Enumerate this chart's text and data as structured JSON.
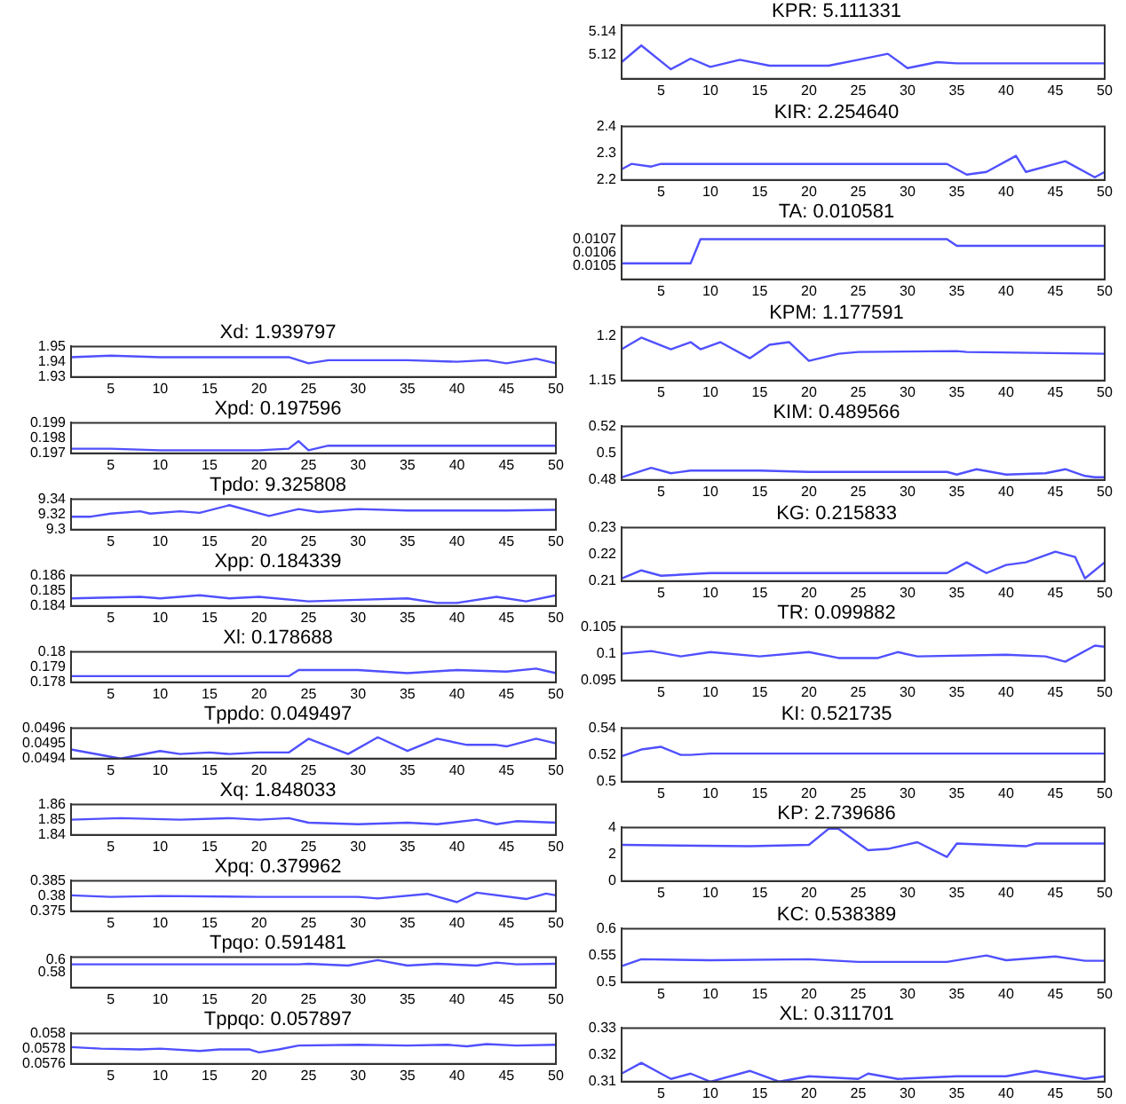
{
  "chart_data": [
    {
      "type": "line",
      "title": "Xd: 1.939797",
      "x": [
        1,
        5,
        10,
        15,
        20,
        23,
        25,
        27,
        30,
        35,
        40,
        43,
        45,
        47,
        48,
        50
      ],
      "values": [
        1.943,
        1.944,
        1.943,
        1.943,
        1.943,
        1.943,
        1.939,
        1.941,
        1.941,
        1.941,
        1.94,
        1.941,
        1.939,
        1.941,
        1.942,
        1.939
      ],
      "color": "#5050ff",
      "xlim": [
        1,
        50
      ],
      "xticks": [
        5,
        10,
        15,
        20,
        25,
        30,
        35,
        40,
        45,
        50
      ],
      "ylim": [
        1.93,
        1.95
      ],
      "yticks": [
        1.93,
        1.94,
        1.95
      ],
      "grid": false
    },
    {
      "type": "line",
      "title": "Xpd: 0.197596",
      "x": [
        1,
        5,
        10,
        15,
        20,
        23,
        24,
        25,
        27,
        30,
        35,
        40,
        45,
        50
      ],
      "values": [
        0.1973,
        0.1973,
        0.1972,
        0.1972,
        0.1972,
        0.1973,
        0.1978,
        0.1972,
        0.1975,
        0.1975,
        0.1975,
        0.1975,
        0.1975,
        0.1975
      ],
      "color": "#5050ff",
      "xlim": [
        1,
        50
      ],
      "xticks": [
        5,
        10,
        15,
        20,
        25,
        30,
        35,
        40,
        45,
        50
      ],
      "ylim": [
        0.197,
        0.199
      ],
      "yticks": [
        0.197,
        0.198,
        0.199
      ],
      "grid": false
    },
    {
      "type": "line",
      "title": "Tpdo: 9.325808",
      "x": [
        1,
        3,
        5,
        8,
        9,
        12,
        14,
        17,
        21,
        24,
        26,
        30,
        35,
        40,
        45,
        50
      ],
      "values": [
        9.317,
        9.317,
        9.321,
        9.324,
        9.321,
        9.324,
        9.322,
        9.332,
        9.318,
        9.327,
        9.323,
        9.327,
        9.325,
        9.325,
        9.325,
        9.326
      ],
      "color": "#5050ff",
      "xlim": [
        1,
        50
      ],
      "xticks": [
        5,
        10,
        15,
        20,
        25,
        30,
        35,
        40,
        45,
        50
      ],
      "ylim": [
        9.3,
        9.34
      ],
      "yticks": [
        9.3,
        9.32,
        9.34
      ],
      "grid": false
    },
    {
      "type": "line",
      "title": "Xpp: 0.184339",
      "x": [
        1,
        8,
        10,
        14,
        17,
        20,
        25,
        30,
        35,
        38,
        40,
        44,
        47,
        50
      ],
      "values": [
        0.1845,
        0.1846,
        0.1845,
        0.1847,
        0.1845,
        0.1846,
        0.1843,
        0.1844,
        0.1845,
        0.1842,
        0.1842,
        0.1846,
        0.1843,
        0.1847
      ],
      "color": "#5050ff",
      "xlim": [
        1,
        50
      ],
      "xticks": [
        5,
        10,
        15,
        20,
        25,
        30,
        35,
        40,
        45,
        50
      ],
      "ylim": [
        0.184,
        0.186
      ],
      "yticks": [
        0.184,
        0.185,
        0.186
      ],
      "grid": false
    },
    {
      "type": "line",
      "title": "Xl: 0.178688",
      "x": [
        1,
        10,
        23,
        24,
        30,
        35,
        40,
        45,
        48,
        50
      ],
      "values": [
        0.1784,
        0.1784,
        0.1784,
        0.1788,
        0.1788,
        0.1786,
        0.1788,
        0.1787,
        0.1789,
        0.1786
      ],
      "color": "#5050ff",
      "xlim": [
        1,
        50
      ],
      "xticks": [
        5,
        10,
        15,
        20,
        25,
        30,
        35,
        40,
        45,
        50
      ],
      "ylim": [
        0.178,
        0.18
      ],
      "yticks": [
        0.178,
        0.179,
        0.18
      ],
      "grid": false
    },
    {
      "type": "line",
      "title": "Tppdo: 0.049497",
      "x": [
        1,
        6,
        10,
        12,
        15,
        17,
        20,
        23,
        25,
        29,
        32,
        35,
        38,
        41,
        44,
        45,
        48,
        50
      ],
      "values": [
        0.04946,
        0.0494,
        0.04945,
        0.04943,
        0.04944,
        0.04943,
        0.04944,
        0.04944,
        0.04953,
        0.04943,
        0.04954,
        0.04945,
        0.04953,
        0.04949,
        0.04949,
        0.04948,
        0.04953,
        0.0495
      ],
      "color": "#5050ff",
      "xlim": [
        1,
        50
      ],
      "xticks": [
        5,
        10,
        15,
        20,
        25,
        30,
        35,
        40,
        45,
        50
      ],
      "ylim": [
        0.0494,
        0.0496
      ],
      "yticks": [
        0.0494,
        0.0495,
        0.0496
      ],
      "grid": false
    },
    {
      "type": "line",
      "title": "Xq: 1.848033",
      "x": [
        1,
        6,
        12,
        17,
        20,
        23,
        25,
        30,
        35,
        38,
        42,
        44,
        46,
        50
      ],
      "values": [
        1.85,
        1.851,
        1.85,
        1.851,
        1.85,
        1.851,
        1.848,
        1.847,
        1.848,
        1.847,
        1.85,
        1.847,
        1.849,
        1.848
      ],
      "color": "#5050ff",
      "xlim": [
        1,
        50
      ],
      "xticks": [
        5,
        10,
        15,
        20,
        25,
        30,
        35,
        40,
        45,
        50
      ],
      "ylim": [
        1.84,
        1.86
      ],
      "yticks": [
        1.84,
        1.85,
        1.86
      ],
      "grid": false
    },
    {
      "type": "line",
      "title": "Xpq: 0.379962",
      "x": [
        1,
        5,
        10,
        20,
        30,
        32,
        37,
        40,
        42,
        47,
        49,
        50
      ],
      "values": [
        0.3802,
        0.3797,
        0.38,
        0.3797,
        0.3797,
        0.3792,
        0.3807,
        0.378,
        0.3811,
        0.379,
        0.3808,
        0.3802
      ],
      "color": "#5050ff",
      "xlim": [
        1,
        50
      ],
      "xticks": [
        5,
        10,
        15,
        20,
        25,
        30,
        35,
        40,
        45,
        50
      ],
      "ylim": [
        0.375,
        0.385
      ],
      "yticks": [
        0.375,
        0.38,
        0.385
      ],
      "grid": false
    },
    {
      "type": "line",
      "title": "Tpqo: 0.591481",
      "x": [
        1,
        24,
        25,
        29,
        32,
        35,
        38,
        42,
        44,
        46,
        50
      ],
      "values": [
        0.593,
        0.593,
        0.594,
        0.591,
        0.6,
        0.591,
        0.594,
        0.591,
        0.596,
        0.593,
        0.594
      ],
      "color": "#5050ff",
      "xlim": [
        1,
        50
      ],
      "xticks": [
        5,
        10,
        15,
        20,
        25,
        30,
        35,
        40,
        45,
        50
      ],
      "ylim": [
        0.555,
        0.605
      ],
      "yticks": [
        0.58,
        0.6
      ],
      "grid": false
    },
    {
      "type": "line",
      "title": "Tppqo: 0.057897",
      "x": [
        1,
        4,
        8,
        10,
        14,
        16,
        19,
        20,
        22,
        24,
        30,
        35,
        39,
        41,
        43,
        46,
        50
      ],
      "values": [
        0.05782,
        0.0578,
        0.05779,
        0.0578,
        0.05777,
        0.05779,
        0.05779,
        0.05775,
        0.05779,
        0.05784,
        0.05785,
        0.05784,
        0.05785,
        0.05783,
        0.05786,
        0.05784,
        0.05785
      ],
      "color": "#5050ff",
      "xlim": [
        1,
        50
      ],
      "xticks": [
        5,
        10,
        15,
        20,
        25,
        30,
        35,
        40,
        45,
        50
      ],
      "ylim": [
        0.0576,
        0.058
      ],
      "yticks": [
        0.0576,
        0.0578,
        0.058
      ],
      "grid": false
    },
    {
      "type": "line",
      "title": "KPR: 5.111331",
      "x": [
        1,
        3,
        6,
        8,
        10,
        13,
        16,
        22,
        25,
        28,
        30,
        33,
        35,
        50
      ],
      "values": [
        5.114,
        5.128,
        5.108,
        5.117,
        5.11,
        5.116,
        5.111,
        5.111,
        5.116,
        5.121,
        5.109,
        5.114,
        5.113,
        5.113
      ],
      "color": "#5050ff",
      "xlim": [
        1,
        50
      ],
      "xticks": [
        5,
        10,
        15,
        20,
        25,
        30,
        35,
        40,
        45,
        50
      ],
      "ylim": [
        5.1,
        5.145
      ],
      "yticks": [
        5.12,
        5.14
      ],
      "grid": false
    },
    {
      "type": "line",
      "title": "KIR: 2.254640",
      "x": [
        1,
        2,
        4,
        5,
        34,
        36,
        38,
        41,
        42,
        46,
        49,
        50
      ],
      "values": [
        2.24,
        2.26,
        2.25,
        2.26,
        2.26,
        2.22,
        2.23,
        2.29,
        2.23,
        2.27,
        2.21,
        2.23
      ],
      "color": "#5050ff",
      "xlim": [
        1,
        50
      ],
      "xticks": [
        5,
        10,
        15,
        20,
        25,
        30,
        35,
        40,
        45,
        50
      ],
      "ylim": [
        2.2,
        2.4
      ],
      "yticks": [
        2.2,
        2.3,
        2.4
      ],
      "grid": false
    },
    {
      "type": "line",
      "title": "TA: 0.010581",
      "x": [
        1,
        8,
        9,
        34,
        35,
        50
      ],
      "values": [
        0.01052,
        0.01052,
        0.0107,
        0.0107,
        0.01065,
        0.01065
      ],
      "color": "#5050ff",
      "xlim": [
        1,
        50
      ],
      "xticks": [
        5,
        10,
        15,
        20,
        25,
        30,
        35,
        40,
        45,
        50
      ],
      "ylim": [
        0.0104,
        0.0108
      ],
      "yticks": [
        0.0105,
        0.0106,
        0.0107
      ],
      "grid": false
    },
    {
      "type": "line",
      "title": "KPM: 1.177591",
      "x": [
        1,
        3,
        6,
        8,
        9,
        11,
        14,
        16,
        18,
        20,
        23,
        25,
        35,
        36,
        50
      ],
      "values": [
        1.185,
        1.198,
        1.185,
        1.193,
        1.185,
        1.193,
        1.175,
        1.19,
        1.193,
        1.172,
        1.18,
        1.182,
        1.183,
        1.182,
        1.18
      ],
      "color": "#5050ff",
      "xlim": [
        1,
        50
      ],
      "xticks": [
        5,
        10,
        15,
        20,
        25,
        30,
        35,
        40,
        45,
        50
      ],
      "ylim": [
        1.15,
        1.21
      ],
      "yticks": [
        1.15,
        1.2
      ],
      "grid": false
    },
    {
      "type": "line",
      "title": "KIM: 0.489566",
      "x": [
        1,
        4,
        6,
        8,
        15,
        20,
        34,
        35,
        37,
        40,
        44,
        46,
        48,
        49,
        50
      ],
      "values": [
        0.482,
        0.489,
        0.485,
        0.487,
        0.487,
        0.486,
        0.486,
        0.484,
        0.488,
        0.484,
        0.485,
        0.488,
        0.483,
        0.482,
        0.482
      ],
      "color": "#5050ff",
      "xlim": [
        1,
        50
      ],
      "xticks": [
        5,
        10,
        15,
        20,
        25,
        30,
        35,
        40,
        45,
        50
      ],
      "ylim": [
        0.48,
        0.52
      ],
      "yticks": [
        0.48,
        0.5,
        0.52
      ],
      "grid": false
    },
    {
      "type": "line",
      "title": "KG: 0.215833",
      "x": [
        1,
        3,
        5,
        10,
        34,
        36,
        38,
        40,
        42,
        45,
        47,
        48,
        50
      ],
      "values": [
        0.211,
        0.214,
        0.212,
        0.213,
        0.213,
        0.217,
        0.213,
        0.216,
        0.217,
        0.221,
        0.219,
        0.211,
        0.217
      ],
      "color": "#5050ff",
      "xlim": [
        1,
        50
      ],
      "xticks": [
        5,
        10,
        15,
        20,
        25,
        30,
        35,
        40,
        45,
        50
      ],
      "ylim": [
        0.21,
        0.23
      ],
      "yticks": [
        0.21,
        0.22,
        0.23
      ],
      "grid": false
    },
    {
      "type": "line",
      "title": "TR: 0.099882",
      "x": [
        1,
        4,
        7,
        10,
        15,
        20,
        23,
        27,
        29,
        31,
        40,
        44,
        46,
        49,
        50
      ],
      "values": [
        0.1,
        0.1005,
        0.0995,
        0.1003,
        0.0995,
        0.1003,
        0.0992,
        0.0992,
        0.1003,
        0.0995,
        0.0998,
        0.0995,
        0.0985,
        0.1015,
        0.1013
      ],
      "color": "#5050ff",
      "xlim": [
        1,
        50
      ],
      "xticks": [
        5,
        10,
        15,
        20,
        25,
        30,
        35,
        40,
        45,
        50
      ],
      "ylim": [
        0.095,
        0.105
      ],
      "yticks": [
        0.095,
        0.1,
        0.105
      ],
      "grid": false
    },
    {
      "type": "line",
      "title": "KI: 0.521735",
      "x": [
        1,
        3,
        5,
        7,
        8,
        10,
        50
      ],
      "values": [
        0.519,
        0.524,
        0.526,
        0.52,
        0.52,
        0.521,
        0.521
      ],
      "color": "#5050ff",
      "xlim": [
        1,
        50
      ],
      "xticks": [
        5,
        10,
        15,
        20,
        25,
        30,
        35,
        40,
        45,
        50
      ],
      "ylim": [
        0.5,
        0.54
      ],
      "yticks": [
        0.5,
        0.52,
        0.54
      ],
      "grid": false
    },
    {
      "type": "line",
      "title": "KP: 2.739686",
      "x": [
        1,
        14,
        20,
        22,
        23,
        26,
        28,
        31,
        34,
        35,
        42,
        43,
        50
      ],
      "values": [
        2.7,
        2.6,
        2.7,
        3.9,
        3.9,
        2.3,
        2.4,
        2.9,
        1.8,
        2.8,
        2.6,
        2.8,
        2.8
      ],
      "color": "#5050ff",
      "xlim": [
        1,
        50
      ],
      "xticks": [
        5,
        10,
        15,
        20,
        25,
        30,
        35,
        40,
        45,
        50
      ],
      "ylim": [
        0,
        4
      ],
      "yticks": [
        0,
        2,
        4
      ],
      "grid": false
    },
    {
      "type": "line",
      "title": "KC: 0.538389",
      "x": [
        1,
        3,
        10,
        20,
        25,
        34,
        38,
        40,
        45,
        48,
        50
      ],
      "values": [
        0.53,
        0.543,
        0.541,
        0.543,
        0.538,
        0.538,
        0.55,
        0.541,
        0.548,
        0.54,
        0.54
      ],
      "color": "#5050ff",
      "xlim": [
        1,
        50
      ],
      "xticks": [
        5,
        10,
        15,
        20,
        25,
        30,
        35,
        40,
        45,
        50
      ],
      "ylim": [
        0.5,
        0.6
      ],
      "yticks": [
        0.5,
        0.55,
        0.6
      ],
      "grid": false
    },
    {
      "type": "line",
      "title": "XL: 0.311701",
      "x": [
        1,
        3,
        5,
        6,
        8,
        10,
        14,
        17,
        20,
        25,
        26,
        29,
        35,
        40,
        43,
        48,
        50
      ],
      "values": [
        0.313,
        0.317,
        0.313,
        0.311,
        0.313,
        0.31,
        0.314,
        0.31,
        0.312,
        0.311,
        0.313,
        0.311,
        0.312,
        0.312,
        0.314,
        0.311,
        0.312
      ],
      "color": "#5050ff",
      "xlim": [
        1,
        50
      ],
      "xticks": [
        5,
        10,
        15,
        20,
        25,
        30,
        35,
        40,
        45,
        50
      ],
      "ylim": [
        0.31,
        0.33
      ],
      "yticks": [
        0.31,
        0.32,
        0.33
      ],
      "grid": false
    }
  ]
}
